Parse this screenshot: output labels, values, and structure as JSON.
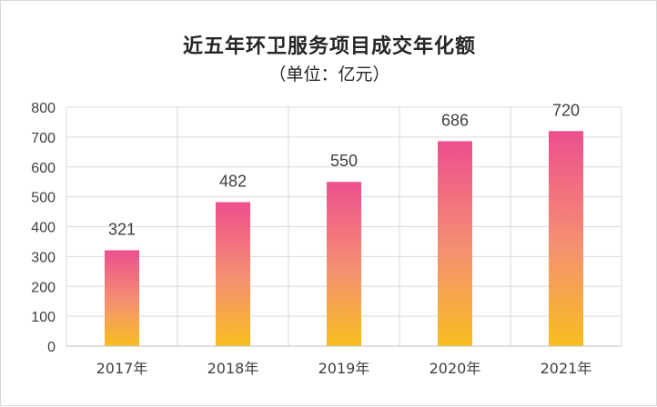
{
  "chart_data": {
    "type": "bar",
    "title": "近五年环卫服务项目成交年化额",
    "subtitle": "（单位：亿元）",
    "categories": [
      "2017年",
      "2018年",
      "2019年",
      "2020年",
      "2021年"
    ],
    "values": [
      321,
      482,
      550,
      686,
      720
    ],
    "ylim": [
      0,
      800
    ],
    "yticks": [
      0,
      100,
      200,
      300,
      400,
      500,
      600,
      700,
      800
    ],
    "grid": true,
    "legend": "none",
    "colors": {
      "bar_top": "#ee4f8e",
      "bar_bottom": "#f7be1f",
      "grid": "#d9d9d9",
      "axis": "#bfbfbf"
    }
  }
}
